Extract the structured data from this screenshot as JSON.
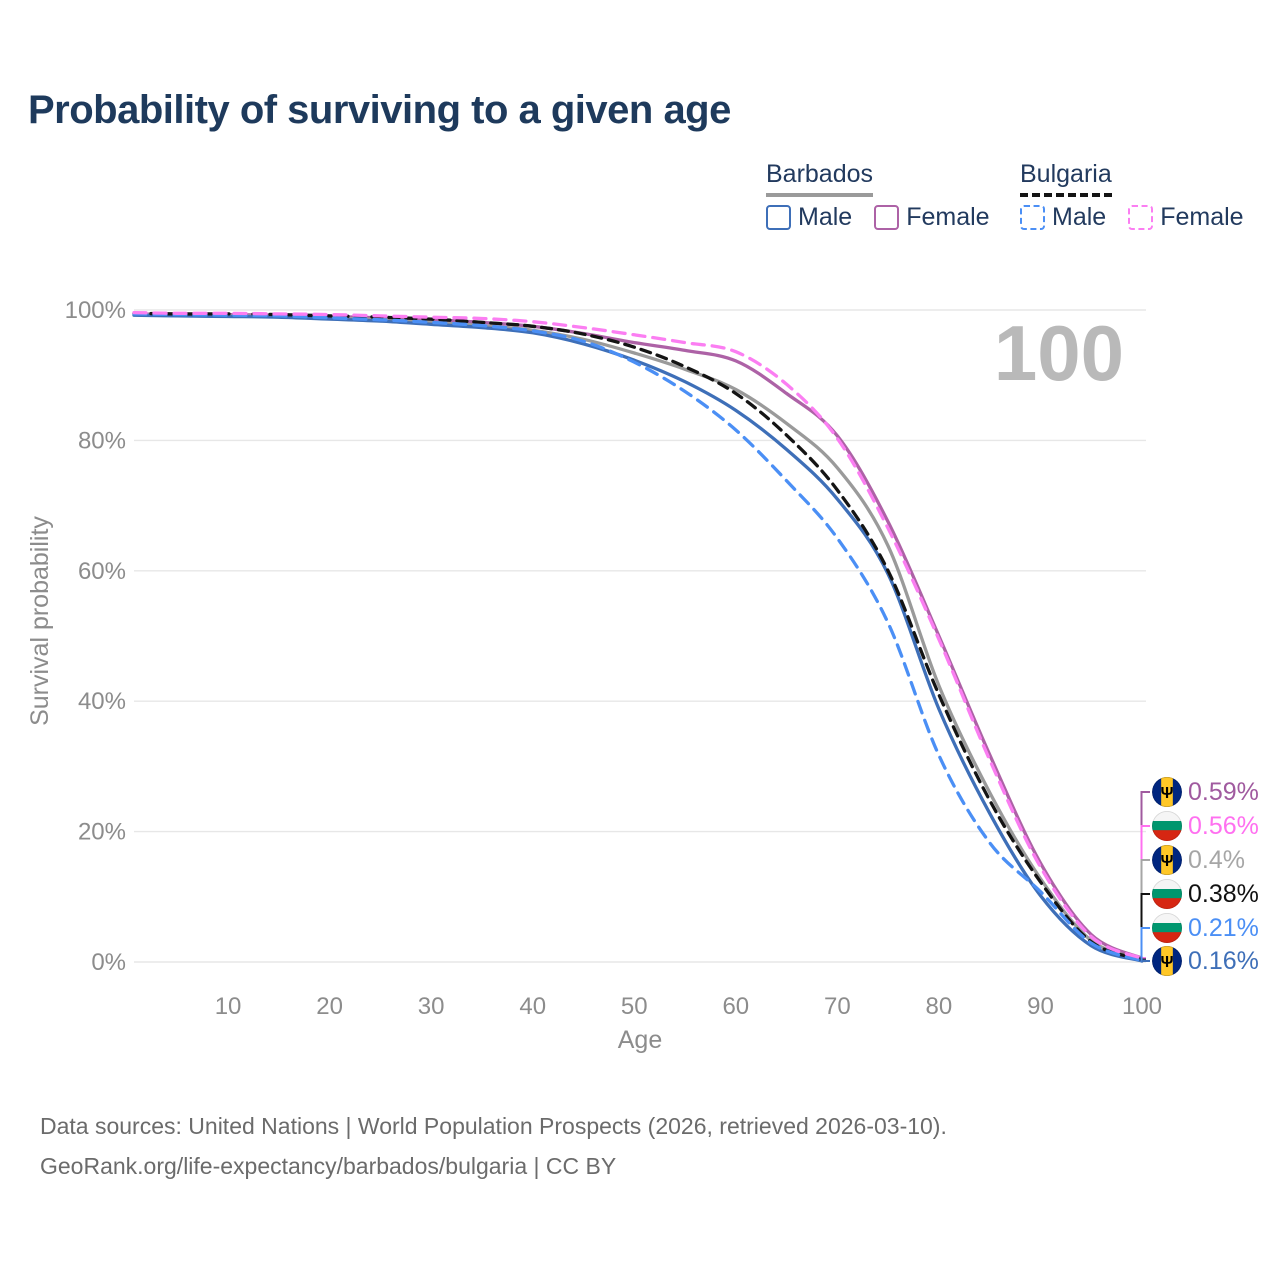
{
  "header": {
    "title": "Probability of surviving to a given age"
  },
  "legend": {
    "groups": [
      {
        "label": "Barbados",
        "underline_style": "solid",
        "underline_color": "#9a9a9a",
        "items": [
          {
            "label": "Male",
            "color": "#3e6fb8",
            "box_style": "solid"
          },
          {
            "label": "Female",
            "color": "#ad62a6",
            "box_style": "solid"
          }
        ]
      },
      {
        "label": "Bulgaria",
        "underline_style": "dashed",
        "underline_color": "#141414",
        "items": [
          {
            "label": "Male",
            "color": "#4b8ff5",
            "box_style": "dashed"
          },
          {
            "label": "Female",
            "color": "#fb7ef2",
            "box_style": "dashed"
          }
        ]
      }
    ]
  },
  "chart_data": {
    "type": "line",
    "title": "Probability of surviving to a given age",
    "xlabel": "Age",
    "ylabel": "Survival probability",
    "xlim": [
      0,
      100
    ],
    "ylim": [
      0,
      100
    ],
    "x_ticks": [
      10,
      20,
      30,
      40,
      50,
      60,
      70,
      80,
      90,
      100
    ],
    "y_ticks": [
      0,
      20,
      40,
      60,
      80,
      100
    ],
    "y_tick_suffix": "%",
    "grid": "horizontal-only",
    "watermark": "100",
    "x": [
      0,
      5,
      10,
      15,
      20,
      25,
      30,
      35,
      40,
      45,
      50,
      55,
      60,
      65,
      70,
      75,
      80,
      85,
      90,
      95,
      100
    ],
    "series": [
      {
        "name": "Barbados Female",
        "country": "barbados",
        "sex": "female",
        "line": "solid",
        "color": "#ad62a6",
        "values": [
          99.4,
          99.3,
          99.3,
          99.2,
          99.0,
          98.8,
          98.5,
          98.1,
          97.5,
          96.4,
          95.0,
          93.8,
          92.2,
          87.2,
          80.7,
          67.5,
          50.0,
          31.8,
          15.2,
          4.2,
          0.59
        ],
        "end_value_label": "0.59%"
      },
      {
        "name": "Bulgaria Female",
        "country": "bulgaria",
        "sex": "female",
        "line": "dashed",
        "color": "#fb7ef2",
        "values": [
          99.6,
          99.5,
          99.5,
          99.4,
          99.3,
          99.1,
          98.9,
          98.7,
          98.2,
          97.3,
          96.2,
          95.0,
          93.6,
          88.6,
          80.3,
          66.5,
          49.5,
          31.0,
          14.6,
          3.9,
          0.56
        ],
        "end_value_label": "0.56%"
      },
      {
        "name": "Barbados",
        "country": "barbados",
        "sex": "both",
        "line": "solid",
        "color": "#9a9a9a",
        "values": [
          99.3,
          99.2,
          99.1,
          99.0,
          98.8,
          98.5,
          98.1,
          97.6,
          96.9,
          95.5,
          93.4,
          90.9,
          87.8,
          82.6,
          75.8,
          63.8,
          42.4,
          26.0,
          12.8,
          3.3,
          0.4
        ],
        "end_value_label": "0.4%"
      },
      {
        "name": "Bulgaria",
        "country": "bulgaria",
        "sex": "both",
        "line": "dashed",
        "color": "#141414",
        "values": [
          99.5,
          99.4,
          99.4,
          99.3,
          99.1,
          98.9,
          98.6,
          98.1,
          97.5,
          96.3,
          94.3,
          91.3,
          87.2,
          80.8,
          72.4,
          60.0,
          41.0,
          24.8,
          12.3,
          3.1,
          0.38
        ],
        "end_value_label": "0.38%"
      },
      {
        "name": "Bulgaria Male",
        "country": "bulgaria",
        "sex": "male",
        "line": "dashed",
        "color": "#4b8ff5",
        "values": [
          99.4,
          99.3,
          99.2,
          99.1,
          98.8,
          98.5,
          98.1,
          97.6,
          96.8,
          95.2,
          92.0,
          87.5,
          81.6,
          73.8,
          65.0,
          52.0,
          31.7,
          18.3,
          10.8,
          2.9,
          0.21
        ],
        "end_value_label": "0.21%"
      },
      {
        "name": "Barbados Male",
        "country": "barbados",
        "sex": "male",
        "line": "solid",
        "color": "#3e6fb8",
        "values": [
          99.2,
          99.1,
          99.0,
          98.9,
          98.6,
          98.3,
          97.8,
          97.3,
          96.5,
          94.8,
          92.3,
          89.0,
          84.6,
          78.6,
          71.0,
          59.5,
          38.8,
          22.8,
          10.2,
          2.5,
          0.16
        ],
        "end_value_label": "0.16%"
      }
    ]
  },
  "end_labels": [
    {
      "flag": "barbados",
      "value": "0.59%",
      "color": "#a05a9f"
    },
    {
      "flag": "bulgaria",
      "value": "0.56%",
      "color": "#ff70f0"
    },
    {
      "flag": "barbados",
      "value": "0.4%",
      "color": "#a6a6a6"
    },
    {
      "flag": "bulgaria",
      "value": "0.38%",
      "color": "#111111"
    },
    {
      "flag": "bulgaria",
      "value": "0.21%",
      "color": "#4b8ff5"
    },
    {
      "flag": "barbados",
      "value": "0.16%",
      "color": "#3e6fb8"
    }
  ],
  "flag_colors": {
    "barbados": {
      "left": "#00267f",
      "middle": "#ffc726",
      "right": "#00267f",
      "trident": "#000000"
    },
    "bulgaria": {
      "top": "#f5f5f5",
      "middle": "#00966e",
      "bottom": "#d62612"
    }
  },
  "footer": {
    "line1": "Data sources: United Nations | World Population Prospects (2026, retrieved 2026-03-10).",
    "line2": "GeoRank.org/life-expectancy/barbados/bulgaria | CC BY"
  }
}
